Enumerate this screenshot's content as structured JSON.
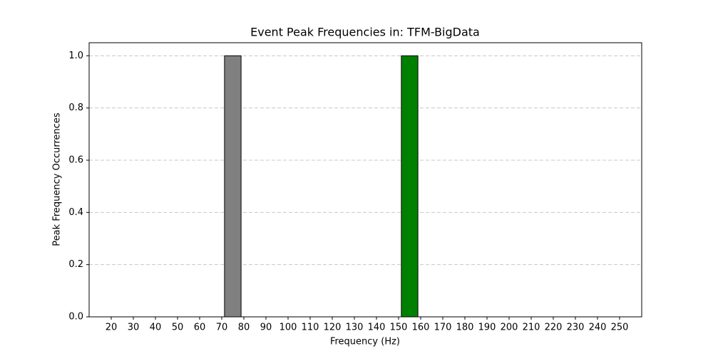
{
  "chart_data": {
    "type": "histogram",
    "title": "Event Peak Frequencies in: TFM-BigData",
    "xlabel": "Frequency (Hz)",
    "ylabel": "Peak Frequency Occurrences",
    "bins": [
      10,
      20,
      30,
      40,
      50,
      60,
      70,
      80,
      90,
      100,
      110,
      120,
      130,
      140,
      150,
      160,
      170,
      180,
      190,
      200,
      210,
      220,
      230,
      240,
      250
    ],
    "values": [
      0,
      0,
      0,
      0,
      0,
      0,
      1,
      0,
      0,
      0,
      0,
      0,
      0,
      0,
      1,
      0,
      0,
      0,
      0,
      0,
      0,
      0,
      0,
      0
    ],
    "colors": [
      null,
      null,
      null,
      null,
      null,
      null,
      "#808080",
      null,
      null,
      null,
      null,
      null,
      null,
      null,
      "#008000",
      null,
      null,
      null,
      null,
      null,
      null,
      null,
      null,
      null
    ],
    "xlim": [
      10,
      260
    ],
    "xticks": [
      20,
      30,
      40,
      50,
      60,
      70,
      80,
      90,
      100,
      110,
      120,
      130,
      140,
      150,
      160,
      170,
      180,
      190,
      200,
      210,
      220,
      230,
      240,
      250
    ],
    "ylim": [
      0,
      1.05
    ],
    "yticks": [
      {
        "value": 0,
        "label": "0.0"
      },
      {
        "value": 0.2,
        "label": "0.2"
      },
      {
        "value": 0.4,
        "label": "0.4"
      },
      {
        "value": 0.6,
        "label": "0.6"
      },
      {
        "value": 0.8,
        "label": "0.8"
      },
      {
        "value": 1,
        "label": "1.0"
      }
    ],
    "grid": true
  }
}
